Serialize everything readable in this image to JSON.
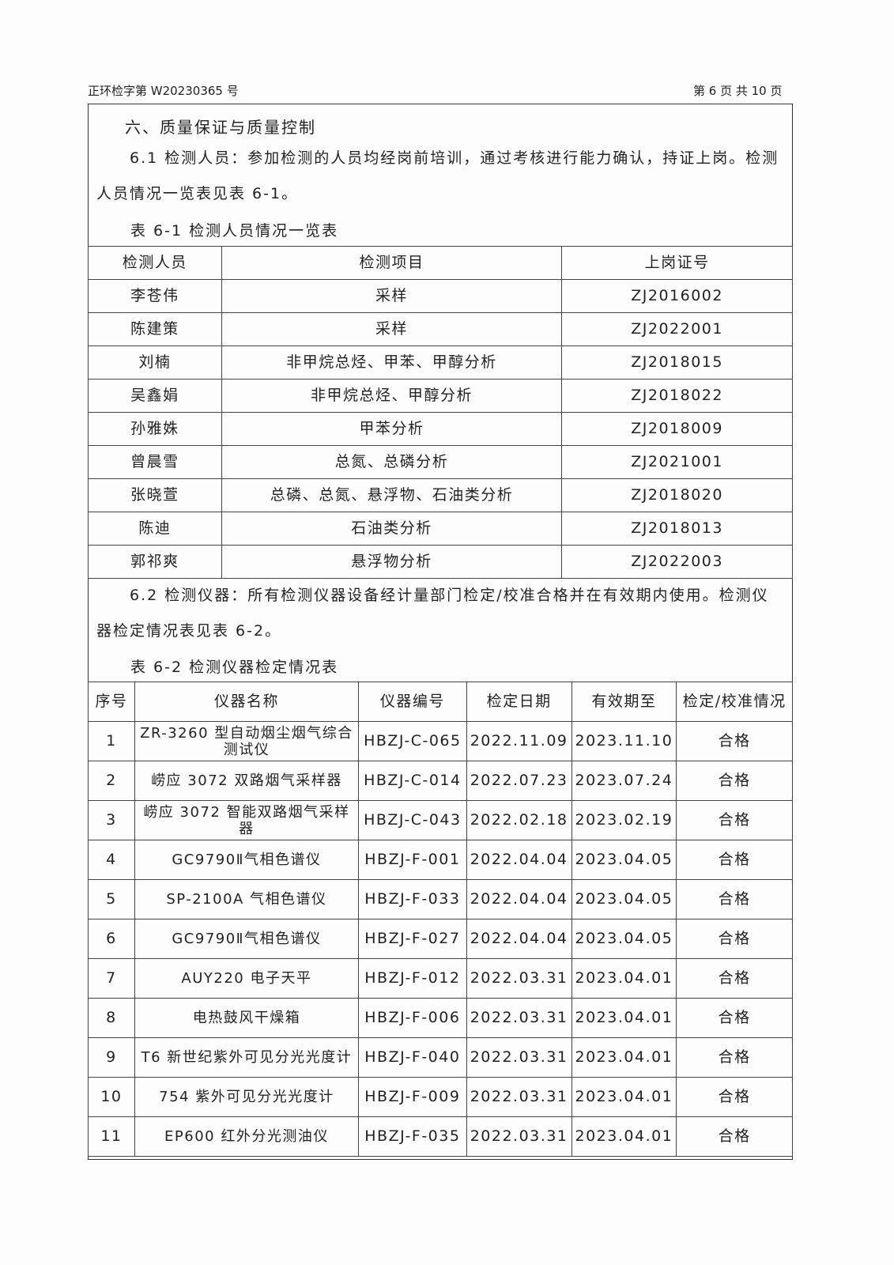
{
  "header": {
    "doc_no": "正环检字第 W20230365 号",
    "page": "第 6 页 共 10 页"
  },
  "section": {
    "title": "六、质量保证与质量控制",
    "para1": "6.1 检测人员：参加检测的人员均经岗前培训，通过考核进行能力确认，持证上岗。检测人员情况一览表见表 6-1。",
    "table1_caption": "表 6-1 检测人员情况一览表",
    "para2": "6.2 检测仪器：所有检测仪器设备经计量部门检定/校准合格并在有效期内使用。检测仪器检定情况表见表 6-2。",
    "table2_caption": "表 6-2 检测仪器检定情况表"
  },
  "table1": {
    "columns": [
      "检测人员",
      "检测项目",
      "上岗证号"
    ],
    "rows": [
      [
        "李苍伟",
        "采样",
        "ZJ2016002"
      ],
      [
        "陈建策",
        "采样",
        "ZJ2022001"
      ],
      [
        "刘楠",
        "非甲烷总烃、甲苯、甲醇分析",
        "ZJ2018015"
      ],
      [
        "吴鑫娟",
        "非甲烷总烃、甲醇分析",
        "ZJ2018022"
      ],
      [
        "孙雅姝",
        "甲苯分析",
        "ZJ2018009"
      ],
      [
        "曾晨雪",
        "总氮、总磷分析",
        "ZJ2021001"
      ],
      [
        "张晓萱",
        "总磷、总氮、悬浮物、石油类分析",
        "ZJ2018020"
      ],
      [
        "陈迪",
        "石油类分析",
        "ZJ2018013"
      ],
      [
        "郭祁爽",
        "悬浮物分析",
        "ZJ2022003"
      ]
    ]
  },
  "table2": {
    "columns": [
      "序号",
      "仪器名称",
      "仪器编号",
      "检定日期",
      "有效期至",
      "检定/校准情况"
    ],
    "rows": [
      [
        "1",
        "ZR-3260 型自动烟尘烟气综合测试仪",
        "HBZJ-C-065",
        "2022.11.09",
        "2023.11.10",
        "合格"
      ],
      [
        "2",
        "崂应 3072 双路烟气采样器",
        "HBZJ-C-014",
        "2022.07.23",
        "2023.07.24",
        "合格"
      ],
      [
        "3",
        "崂应 3072 智能双路烟气采样器",
        "HBZJ-C-043",
        "2022.02.18",
        "2023.02.19",
        "合格"
      ],
      [
        "4",
        "GC9790Ⅱ气相色谱仪",
        "HBZJ-F-001",
        "2022.04.04",
        "2023.04.05",
        "合格"
      ],
      [
        "5",
        "SP-2100A 气相色谱仪",
        "HBZJ-F-033",
        "2022.04.04",
        "2023.04.05",
        "合格"
      ],
      [
        "6",
        "GC9790Ⅱ气相色谱仪",
        "HBZJ-F-027",
        "2022.04.04",
        "2023.04.05",
        "合格"
      ],
      [
        "7",
        "AUY220 电子天平",
        "HBZJ-F-012",
        "2022.03.31",
        "2023.04.01",
        "合格"
      ],
      [
        "8",
        "电热鼓风干燥箱",
        "HBZJ-F-006",
        "2022.03.31",
        "2023.04.01",
        "合格"
      ],
      [
        "9",
        "T6 新世纪紫外可见分光光度计",
        "HBZJ-F-040",
        "2022.03.31",
        "2023.04.01",
        "合格"
      ],
      [
        "10",
        "754 紫外可见分光光度计",
        "HBZJ-F-009",
        "2022.03.31",
        "2023.04.01",
        "合格"
      ],
      [
        "11",
        "EP600 红外分光测油仪",
        "HBZJ-F-035",
        "2022.03.31",
        "2023.04.01",
        "合格"
      ]
    ]
  }
}
